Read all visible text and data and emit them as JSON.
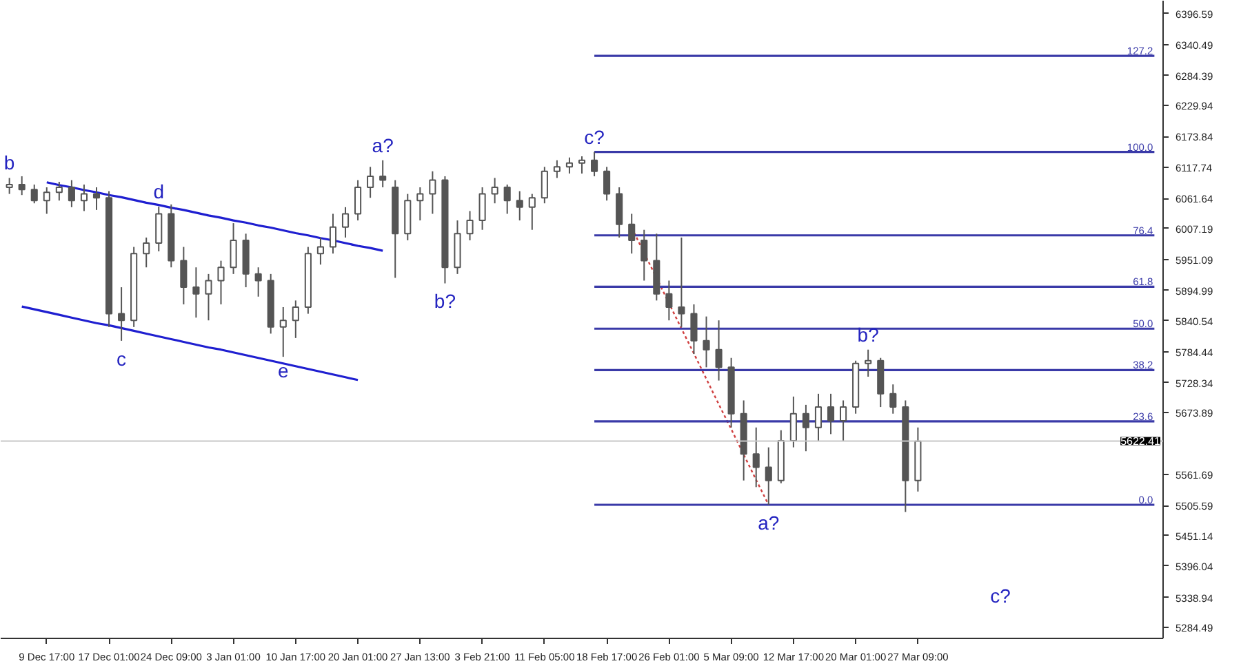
{
  "chart_data": {
    "type": "candlestick",
    "color": "#555555",
    "categories": [
      null,
      null,
      null,
      "9 Dec 17:00",
      null,
      null,
      null,
      null,
      "17 Dec 01:00",
      null,
      null,
      null,
      null,
      "24 Dec 09:00",
      null,
      null,
      null,
      null,
      "3 Jan 01:00",
      null,
      null,
      null,
      null,
      "10 Jan 17:00",
      null,
      null,
      null,
      null,
      "20 Jan 01:00",
      null,
      null,
      null,
      null,
      "27 Jan 13:00",
      null,
      null,
      null,
      null,
      "3 Feb 21:00",
      null,
      null,
      null,
      null,
      "11 Feb 05:00",
      null,
      null,
      null,
      null,
      "18 Feb 17:00",
      null,
      null,
      null,
      null,
      "26 Feb 01:00",
      null,
      null,
      null,
      null,
      "5 Mar 09:00",
      null,
      null,
      null,
      null,
      "12 Mar 17:00",
      null,
      null,
      null,
      null,
      "20 Mar 01:00",
      null,
      null,
      null,
      null,
      "27 Mar 09:00",
      null,
      null,
      null,
      null,
      null,
      null,
      null,
      null,
      null,
      null,
      null,
      null,
      null,
      null,
      null,
      null,
      null,
      null,
      null
    ],
    "ohlc": [
      [
        6082,
        6099,
        6070,
        6087
      ],
      [
        6087,
        6102,
        6068,
        6078
      ],
      [
        6078,
        6087,
        6053,
        6058
      ],
      [
        6058,
        6082,
        6034,
        6073
      ],
      [
        6073,
        6092,
        6058,
        6082
      ],
      [
        6082,
        6095,
        6046,
        6058
      ],
      [
        6058,
        6087,
        6039,
        6070
      ],
      [
        6070,
        6082,
        6041,
        6063
      ],
      [
        6063,
        6075,
        5829,
        5853
      ],
      [
        5853,
        5901,
        5804,
        5841
      ],
      [
        5841,
        5974,
        5829,
        5962
      ],
      [
        5962,
        5991,
        5937,
        5981
      ],
      [
        5981,
        6047,
        5966,
        6034
      ],
      [
        6034,
        6051,
        5937,
        5949
      ],
      [
        5949,
        5974,
        5870,
        5901
      ],
      [
        5901,
        5937,
        5846,
        5889
      ],
      [
        5889,
        5925,
        5841,
        5913
      ],
      [
        5913,
        5949,
        5870,
        5937
      ],
      [
        5937,
        6017,
        5925,
        5986
      ],
      [
        5986,
        5998,
        5901,
        5925
      ],
      [
        5925,
        5937,
        5884,
        5913
      ],
      [
        5913,
        5925,
        5817,
        5829
      ],
      [
        5829,
        5865,
        5775,
        5841
      ],
      [
        5841,
        5877,
        5809,
        5865
      ],
      [
        5865,
        5974,
        5853,
        5962
      ],
      [
        5962,
        5991,
        5942,
        5974
      ],
      [
        5974,
        6034,
        5962,
        6010
      ],
      [
        6010,
        6046,
        5991,
        6034
      ],
      [
        6034,
        6095,
        6022,
        6082
      ],
      [
        6082,
        6119,
        6063,
        6102
      ],
      [
        6102,
        6131,
        6082,
        6095
      ],
      [
        6082,
        6095,
        5918,
        5998
      ],
      [
        5998,
        6070,
        5986,
        6058
      ],
      [
        6058,
        6082,
        6022,
        6070
      ],
      [
        6070,
        6111,
        6034,
        6095
      ],
      [
        6095,
        6102,
        5908,
        5937
      ],
      [
        5937,
        6022,
        5925,
        5998
      ],
      [
        5998,
        6039,
        5986,
        6022
      ],
      [
        6022,
        6082,
        6005,
        6070
      ],
      [
        6070,
        6099,
        6053,
        6082
      ],
      [
        6082,
        6087,
        6034,
        6058
      ],
      [
        6058,
        6075,
        6022,
        6046
      ],
      [
        6046,
        6070,
        6005,
        6063
      ],
      [
        6063,
        6119,
        6053,
        6111
      ],
      [
        6111,
        6131,
        6099,
        6119
      ],
      [
        6119,
        6136,
        6107,
        6126
      ],
      [
        6126,
        6138,
        6107,
        6131
      ],
      [
        6131,
        6146,
        6102,
        6111
      ],
      [
        6111,
        6119,
        6058,
        6070
      ],
      [
        6070,
        6082,
        5991,
        6015
      ],
      [
        6015,
        6034,
        5962,
        5986
      ],
      [
        5986,
        6005,
        5913,
        5949
      ],
      [
        5949,
        5998,
        5877,
        5889
      ],
      [
        5889,
        5913,
        5841,
        5865
      ],
      [
        5865,
        5991,
        5829,
        5853
      ],
      [
        5853,
        5870,
        5780,
        5804
      ],
      [
        5804,
        5848,
        5756,
        5788
      ],
      [
        5788,
        5841,
        5732,
        5756
      ],
      [
        5756,
        5773,
        5647,
        5672
      ],
      [
        5672,
        5696,
        5551,
        5599
      ],
      [
        5599,
        5647,
        5539,
        5575
      ],
      [
        5575,
        5611,
        5507,
        5551
      ],
      [
        5551,
        5642,
        5546,
        5623
      ],
      [
        5623,
        5703,
        5611,
        5672
      ],
      [
        5672,
        5688,
        5604,
        5647
      ],
      [
        5647,
        5708,
        5623,
        5684
      ],
      [
        5684,
        5708,
        5635,
        5659
      ],
      [
        5659,
        5696,
        5623,
        5684
      ],
      [
        5684,
        5768,
        5672,
        5763
      ],
      [
        5763,
        5788,
        5739,
        5768
      ],
      [
        5768,
        5773,
        5684,
        5708
      ],
      [
        5708,
        5725,
        5672,
        5684
      ],
      [
        5684,
        5696,
        5494,
        5551
      ],
      [
        5551,
        5647,
        5531,
        5622
      ],
      null,
      null,
      null,
      null,
      null,
      null,
      null,
      null,
      null,
      null,
      null,
      null,
      null,
      null,
      null,
      null,
      null,
      null,
      null
    ],
    "series": [
      {
        "type": "line",
        "color": "#1f1fd0",
        "line_style": "solid",
        "values": [
          null,
          null,
          null,
          6091,
          6086,
          6082,
          6077,
          6073,
          6068,
          6064,
          6059,
          6054,
          6050,
          6045,
          6041,
          6036,
          6031,
          6027,
          6022,
          6018,
          6013,
          6009,
          6004,
          5999,
          5995,
          5990,
          5986,
          5981,
          5976,
          5972,
          5967,
          null,
          null,
          null,
          null,
          null,
          null,
          null,
          null,
          null,
          null,
          null,
          null,
          null,
          null,
          null,
          null,
          null,
          null,
          null,
          null,
          null,
          null,
          null,
          null,
          null,
          null,
          null,
          null,
          null,
          null,
          null,
          null,
          null,
          null,
          null,
          null,
          null,
          null,
          null,
          null,
          null,
          null,
          null,
          null,
          null,
          null,
          null,
          null,
          null,
          null,
          null,
          null,
          null,
          null,
          null,
          null,
          null,
          null,
          null,
          null,
          null,
          null
        ]
      },
      {
        "type": "line",
        "color": "#1f1fd0",
        "line_style": "solid",
        "values": [
          null,
          5866,
          5861,
          5856,
          5851,
          5846,
          5841,
          5836,
          5832,
          5827,
          5822,
          5817,
          5812,
          5807,
          5802,
          5797,
          5792,
          5788,
          5783,
          5778,
          5773,
          5768,
          5763,
          5758,
          5753,
          5748,
          5743,
          5738,
          5733,
          null,
          null,
          null,
          null,
          null,
          null,
          null,
          null,
          null,
          null,
          null,
          null,
          null,
          null,
          null,
          null,
          null,
          null,
          null,
          null,
          null,
          null,
          null,
          null,
          null,
          null,
          null,
          null,
          null,
          null,
          null,
          null,
          null,
          null,
          null,
          null,
          null,
          null,
          null,
          null,
          null,
          null,
          null,
          null,
          null,
          null,
          null,
          null,
          null,
          null,
          null,
          null,
          null,
          null,
          null,
          null,
          null,
          null,
          null,
          null,
          null,
          null,
          null,
          null
        ]
      },
      {
        "type": "line",
        "color": "#d04040",
        "line_style": "dotted",
        "values": [
          null,
          null,
          null,
          null,
          null,
          null,
          null,
          null,
          null,
          null,
          null,
          null,
          null,
          null,
          null,
          null,
          null,
          null,
          null,
          null,
          null,
          null,
          null,
          null,
          null,
          null,
          null,
          null,
          null,
          null,
          null,
          null,
          null,
          null,
          null,
          null,
          null,
          null,
          null,
          null,
          null,
          null,
          null,
          null,
          null,
          null,
          null,
          null,
          null,
          null,
          6009,
          5963,
          5918,
          5872,
          5826,
          5781,
          5735,
          5689,
          5644,
          5598,
          5552,
          5507,
          null,
          null,
          null,
          null,
          null,
          null,
          null,
          null,
          null,
          null,
          null,
          null,
          null,
          null,
          null,
          null,
          null,
          null,
          null,
          null,
          null,
          null,
          null,
          null,
          null,
          null,
          null,
          null,
          null,
          null,
          null
        ]
      },
      {
        "type": "line",
        "name": "127.2",
        "color": "#3a3aa8",
        "line_style": "solid",
        "values": [
          null,
          null,
          null,
          null,
          null,
          null,
          null,
          null,
          null,
          null,
          null,
          null,
          null,
          null,
          null,
          null,
          null,
          null,
          null,
          null,
          null,
          null,
          null,
          null,
          null,
          null,
          null,
          null,
          null,
          null,
          null,
          null,
          null,
          null,
          null,
          null,
          null,
          null,
          null,
          null,
          null,
          null,
          null,
          null,
          null,
          null,
          null,
          6320,
          6320,
          6320,
          6320,
          6320,
          6320,
          6320,
          6320,
          6320,
          6320,
          6320,
          6320,
          6320,
          6320,
          6320,
          6320,
          6320,
          6320,
          6320,
          6320,
          6320,
          6320,
          6320,
          6320,
          6320,
          6320,
          6320,
          6320,
          6320,
          6320,
          6320,
          6320,
          6320,
          6320,
          6320,
          6320,
          6320,
          6320,
          6320,
          6320,
          6320,
          6320,
          6320,
          6320,
          6320,
          6320
        ]
      },
      {
        "type": "line",
        "name": "100.0",
        "color": "#3a3aa8",
        "line_style": "solid",
        "values": [
          null,
          null,
          null,
          null,
          null,
          null,
          null,
          null,
          null,
          null,
          null,
          null,
          null,
          null,
          null,
          null,
          null,
          null,
          null,
          null,
          null,
          null,
          null,
          null,
          null,
          null,
          null,
          null,
          null,
          null,
          null,
          null,
          null,
          null,
          null,
          null,
          null,
          null,
          null,
          null,
          null,
          null,
          null,
          null,
          null,
          null,
          null,
          6146,
          6146,
          6146,
          6146,
          6146,
          6146,
          6146,
          6146,
          6146,
          6146,
          6146,
          6146,
          6146,
          6146,
          6146,
          6146,
          6146,
          6146,
          6146,
          6146,
          6146,
          6146,
          6146,
          6146,
          6146,
          6146,
          6146,
          6146,
          6146,
          6146,
          6146,
          6146,
          6146,
          6146,
          6146,
          6146,
          6146,
          6146,
          6146,
          6146,
          6146,
          6146,
          6146,
          6146,
          6146,
          6146
        ]
      },
      {
        "type": "line",
        "name": "76.4",
        "color": "#3a3aa8",
        "line_style": "solid",
        "values": [
          null,
          null,
          null,
          null,
          null,
          null,
          null,
          null,
          null,
          null,
          null,
          null,
          null,
          null,
          null,
          null,
          null,
          null,
          null,
          null,
          null,
          null,
          null,
          null,
          null,
          null,
          null,
          null,
          null,
          null,
          null,
          null,
          null,
          null,
          null,
          null,
          null,
          null,
          null,
          null,
          null,
          null,
          null,
          null,
          null,
          null,
          null,
          5995,
          5995,
          5995,
          5995,
          5995,
          5995,
          5995,
          5995,
          5995,
          5995,
          5995,
          5995,
          5995,
          5995,
          5995,
          5995,
          5995,
          5995,
          5995,
          5995,
          5995,
          5995,
          5995,
          5995,
          5995,
          5995,
          5995,
          5995,
          5995,
          5995,
          5995,
          5995,
          5995,
          5995,
          5995,
          5995,
          5995,
          5995,
          5995,
          5995,
          5995,
          5995,
          5995,
          5995,
          5995,
          5995
        ]
      },
      {
        "type": "line",
        "name": "61.8",
        "color": "#3a3aa8",
        "line_style": "solid",
        "values": [
          null,
          null,
          null,
          null,
          null,
          null,
          null,
          null,
          null,
          null,
          null,
          null,
          null,
          null,
          null,
          null,
          null,
          null,
          null,
          null,
          null,
          null,
          null,
          null,
          null,
          null,
          null,
          null,
          null,
          null,
          null,
          null,
          null,
          null,
          null,
          null,
          null,
          null,
          null,
          null,
          null,
          null,
          null,
          null,
          null,
          null,
          null,
          5902,
          5902,
          5902,
          5902,
          5902,
          5902,
          5902,
          5902,
          5902,
          5902,
          5902,
          5902,
          5902,
          5902,
          5902,
          5902,
          5902,
          5902,
          5902,
          5902,
          5902,
          5902,
          5902,
          5902,
          5902,
          5902,
          5902,
          5902,
          5902,
          5902,
          5902,
          5902,
          5902,
          5902,
          5902,
          5902,
          5902,
          5902,
          5902,
          5902,
          5902,
          5902,
          5902,
          5902,
          5902,
          5902
        ]
      },
      {
        "type": "line",
        "name": "50.0",
        "color": "#3a3aa8",
        "line_style": "solid",
        "values": [
          null,
          null,
          null,
          null,
          null,
          null,
          null,
          null,
          null,
          null,
          null,
          null,
          null,
          null,
          null,
          null,
          null,
          null,
          null,
          null,
          null,
          null,
          null,
          null,
          null,
          null,
          null,
          null,
          null,
          null,
          null,
          null,
          null,
          null,
          null,
          null,
          null,
          null,
          null,
          null,
          null,
          null,
          null,
          null,
          null,
          null,
          null,
          5826,
          5826,
          5826,
          5826,
          5826,
          5826,
          5826,
          5826,
          5826,
          5826,
          5826,
          5826,
          5826,
          5826,
          5826,
          5826,
          5826,
          5826,
          5826,
          5826,
          5826,
          5826,
          5826,
          5826,
          5826,
          5826,
          5826,
          5826,
          5826,
          5826,
          5826,
          5826,
          5826,
          5826,
          5826,
          5826,
          5826,
          5826,
          5826,
          5826,
          5826,
          5826,
          5826,
          5826,
          5826,
          5826
        ]
      },
      {
        "type": "line",
        "name": "38.2",
        "color": "#3a3aa8",
        "line_style": "solid",
        "values": [
          null,
          null,
          null,
          null,
          null,
          null,
          null,
          null,
          null,
          null,
          null,
          null,
          null,
          null,
          null,
          null,
          null,
          null,
          null,
          null,
          null,
          null,
          null,
          null,
          null,
          null,
          null,
          null,
          null,
          null,
          null,
          null,
          null,
          null,
          null,
          null,
          null,
          null,
          null,
          null,
          null,
          null,
          null,
          null,
          null,
          null,
          null,
          5751,
          5751,
          5751,
          5751,
          5751,
          5751,
          5751,
          5751,
          5751,
          5751,
          5751,
          5751,
          5751,
          5751,
          5751,
          5751,
          5751,
          5751,
          5751,
          5751,
          5751,
          5751,
          5751,
          5751,
          5751,
          5751,
          5751,
          5751,
          5751,
          5751,
          5751,
          5751,
          5751,
          5751,
          5751,
          5751,
          5751,
          5751,
          5751,
          5751,
          5751,
          5751,
          5751,
          5751,
          5751,
          5751
        ]
      },
      {
        "type": "line",
        "name": "23.6",
        "color": "#3a3aa8",
        "line_style": "solid",
        "values": [
          null,
          null,
          null,
          null,
          null,
          null,
          null,
          null,
          null,
          null,
          null,
          null,
          null,
          null,
          null,
          null,
          null,
          null,
          null,
          null,
          null,
          null,
          null,
          null,
          null,
          null,
          null,
          null,
          null,
          null,
          null,
          null,
          null,
          null,
          null,
          null,
          null,
          null,
          null,
          null,
          null,
          null,
          null,
          null,
          null,
          null,
          null,
          5658,
          5658,
          5658,
          5658,
          5658,
          5658,
          5658,
          5658,
          5658,
          5658,
          5658,
          5658,
          5658,
          5658,
          5658,
          5658,
          5658,
          5658,
          5658,
          5658,
          5658,
          5658,
          5658,
          5658,
          5658,
          5658,
          5658,
          5658,
          5658,
          5658,
          5658,
          5658,
          5658,
          5658,
          5658,
          5658,
          5658,
          5658,
          5658,
          5658,
          5658,
          5658,
          5658,
          5658,
          5658,
          5658
        ]
      },
      {
        "type": "line",
        "name": "0.0",
        "color": "#3a3aa8",
        "line_style": "solid",
        "values": [
          null,
          null,
          null,
          null,
          null,
          null,
          null,
          null,
          null,
          null,
          null,
          null,
          null,
          null,
          null,
          null,
          null,
          null,
          null,
          null,
          null,
          null,
          null,
          null,
          null,
          null,
          null,
          null,
          null,
          null,
          null,
          null,
          null,
          null,
          null,
          null,
          null,
          null,
          null,
          null,
          null,
          null,
          null,
          null,
          null,
          null,
          null,
          5507,
          5507,
          5507,
          5507,
          5507,
          5507,
          5507,
          5507,
          5507,
          5507,
          5507,
          5507,
          5507,
          5507,
          5507,
          5507,
          5507,
          5507,
          5507,
          5507,
          5507,
          5507,
          5507,
          5507,
          5507,
          5507,
          5507,
          5507,
          5507,
          5507,
          5507,
          5507,
          5507,
          5507,
          5507,
          5507,
          5507,
          5507,
          5507,
          5507,
          5507,
          5507,
          5507,
          5507,
          5507,
          5507
        ]
      }
    ],
    "ref_lines": [
      {
        "axis": "y",
        "value": 5622.41,
        "label": "5622.41",
        "color": "#c8c8c8"
      }
    ],
    "annotations": [
      {
        "text": "b",
        "y": 6099
      },
      {
        "text": "d",
        "y": 6047
      },
      {
        "text": "c",
        "y": 5804
      },
      {
        "text": "e",
        "y": 5775
      },
      {
        "text": "a?",
        "y": 6131
      },
      {
        "text": "b?",
        "y": 5908
      },
      {
        "text": "c?",
        "y": 6146
      },
      {
        "text": "a?",
        "y": 5507
      },
      {
        "text": "b?",
        "y": 5788
      },
      "c?"
    ],
    "ylim": [
      5265,
      6420
    ],
    "yticks": [
      5284.49,
      5338.94,
      5396.04,
      5451.14,
      5505.59,
      5561.69,
      5673.89,
      5728.34,
      5784.44,
      5840.54,
      5894.99,
      5951.09,
      6007.19,
      6061.64,
      6117.74,
      6173.84,
      6229.94,
      6284.39,
      6340.49,
      6396.59
    ],
    "grid": false
  }
}
